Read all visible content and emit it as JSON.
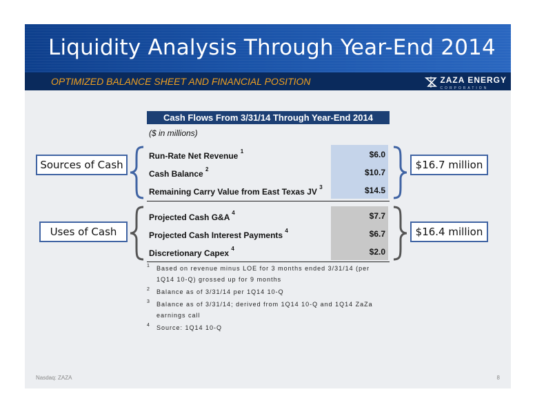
{
  "header": {
    "title": "Liquidity Analysis Through Year-End 2014",
    "subtitle": "OPTIMIZED BALANCE SHEET AND FINANCIAL POSITION",
    "logo_name": "ZAZA ENERGY",
    "logo_sub": "CORPORATION",
    "logo_icon": "zaza-energy-logo-icon"
  },
  "table": {
    "heading": "Cash Flows From 3/31/14 Through Year-End 2014",
    "units": "($ in millions)",
    "sources": [
      {
        "label": "Run-Rate Net Revenue",
        "note": "1",
        "value": "$6.0"
      },
      {
        "label": "Cash Balance",
        "note": "2",
        "value": "$10.7"
      },
      {
        "label": "Remaining Carry Value from East Texas JV",
        "note": "3",
        "value": "$14.5"
      }
    ],
    "uses": [
      {
        "label": "Projected Cash G&A",
        "note": "4",
        "value": "$7.7"
      },
      {
        "label": "Projected Cash Interest Payments",
        "note": "4",
        "value": "$6.7"
      },
      {
        "label": "Discretionary Capex",
        "note": "4",
        "value": "$2.0"
      }
    ]
  },
  "callouts": {
    "sources_label": "Sources of Cash",
    "sources_total": "$16.7 million",
    "uses_label": "Uses of Cash",
    "uses_total": "$16.4 million"
  },
  "footnotes": [
    {
      "n": "1",
      "text": "Based on revenue minus LOE for 3 months ended 3/31/14 (per 1Q14 10-Q) grossed up for 9 months"
    },
    {
      "n": "2",
      "text": "Balance as of 3/31/14 per 1Q14 10-Q"
    },
    {
      "n": "3",
      "text": "Balance as of 3/31/14; derived from 1Q14 10-Q and 1Q14 ZaZa earnings call"
    },
    {
      "n": "4",
      "text": "Source: 1Q14 10-Q"
    }
  ],
  "footer": {
    "left": "Nasdaq: ZAZA",
    "page": "8"
  },
  "colors": {
    "title_bar": "#1a53a8",
    "sub_bar": "#0a2a5c",
    "subtitle_text": "#f0a020",
    "table_heading": "#1c3f74",
    "sources_fill": "#c5d4ea",
    "uses_fill": "#c8c8c8",
    "callout_border": "#3f63a3"
  }
}
